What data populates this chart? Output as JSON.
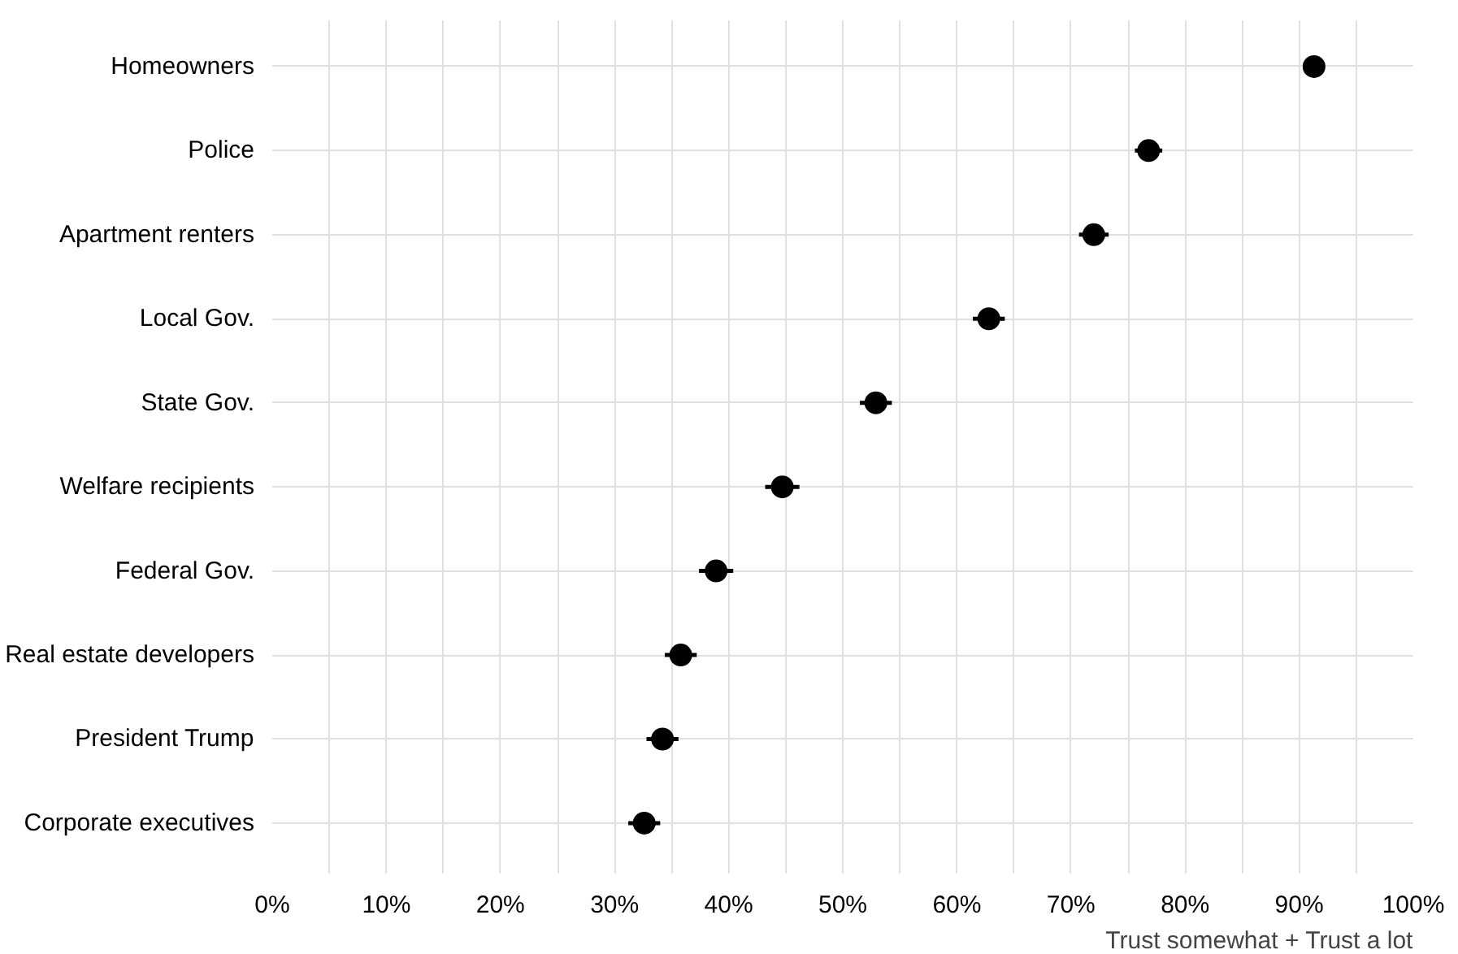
{
  "chart_data": {
    "type": "scatter",
    "orientation": "horizontal",
    "xlabel": "Trust somewhat + Trust a lot",
    "categories": [
      "Homeowners",
      "Police",
      "Apartment renters",
      "Local Gov.",
      "State Gov.",
      "Welfare recipients",
      "Federal Gov.",
      "Real estate developers",
      "President Trump",
      "Corporate executives"
    ],
    "values": [
      91.3,
      76.8,
      72.0,
      62.8,
      52.9,
      44.7,
      38.9,
      35.8,
      34.2,
      32.6
    ],
    "errors": [
      null,
      1.2,
      1.3,
      1.4,
      1.4,
      1.5,
      1.5,
      1.4,
      1.4,
      1.4
    ],
    "color": "#000000",
    "marker": "circle",
    "grid": true,
    "xlim": [
      0,
      100
    ],
    "xticks": [
      {
        "value": 0,
        "label": "0%"
      },
      {
        "value": 5,
        "label": null
      },
      {
        "value": 10,
        "label": "10%"
      },
      {
        "value": 15,
        "label": null
      },
      {
        "value": 20,
        "label": "20%"
      },
      {
        "value": 25,
        "label": null
      },
      {
        "value": 30,
        "label": "30%"
      },
      {
        "value": 35,
        "label": null
      },
      {
        "value": 40,
        "label": "40%"
      },
      {
        "value": 45,
        "label": null
      },
      {
        "value": 50,
        "label": "50%"
      },
      {
        "value": 55,
        "label": null
      },
      {
        "value": 60,
        "label": "60%"
      },
      {
        "value": 65,
        "label": null
      },
      {
        "value": 70,
        "label": "70%"
      },
      {
        "value": 75,
        "label": null
      },
      {
        "value": 80,
        "label": "80%"
      },
      {
        "value": 85,
        "label": null
      },
      {
        "value": 90,
        "label": "90%"
      },
      {
        "value": 95,
        "label": null
      },
      {
        "value": 100,
        "label": "100%"
      }
    ]
  }
}
